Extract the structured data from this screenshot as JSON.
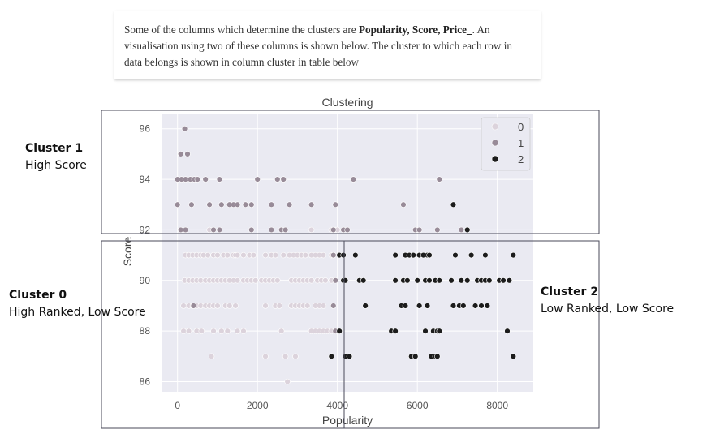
{
  "note": {
    "prefix": "Some of the columns which determine the clusters are ",
    "bold_columns": "Popularity, Score, Price_",
    "suffix": ". An visualisation using two of these columns is shown below. The cluster to which each row in data belongs is shown in column cluster in table below"
  },
  "annotations": {
    "cluster1": {
      "title": "Cluster 1",
      "desc": "High Score"
    },
    "cluster0": {
      "title": "Cluster 0",
      "desc": "High Ranked, Low Score"
    },
    "cluster2": {
      "title": "Cluster 2",
      "desc": "Low Ranked, Low Score"
    }
  },
  "colors": {
    "plot_background": "#eaeaf2",
    "grid": "#ffffff",
    "cluster0": "#dcd3dc",
    "cluster1": "#988b98",
    "cluster2": "#1c1c1c",
    "box_outline": "#4a4a5a"
  },
  "chart_data": {
    "type": "scatter",
    "title": "Clustering",
    "xlabel": "Popularity",
    "ylabel": "Score",
    "xlim": [
      -400,
      8900
    ],
    "ylim": [
      85.6,
      96.6
    ],
    "xticks": [
      0,
      2000,
      4000,
      6000,
      8000
    ],
    "yticks": [
      86,
      88,
      90,
      92,
      94,
      96
    ],
    "grid": true,
    "legend": {
      "position": "top-right",
      "labels": [
        "0",
        "1",
        "2"
      ]
    },
    "series": [
      {
        "name": "0",
        "points": [
          [
            200,
            91
          ],
          [
            280,
            91
          ],
          [
            380,
            91
          ],
          [
            480,
            91
          ],
          [
            580,
            91
          ],
          [
            650,
            91
          ],
          [
            760,
            91
          ],
          [
            900,
            91
          ],
          [
            1000,
            91
          ],
          [
            1150,
            91
          ],
          [
            1250,
            91
          ],
          [
            1400,
            91
          ],
          [
            1450,
            91
          ],
          [
            1500,
            91
          ],
          [
            1650,
            91
          ],
          [
            1800,
            91
          ],
          [
            1900,
            91
          ],
          [
            2200,
            91
          ],
          [
            2350,
            91
          ],
          [
            2450,
            91
          ],
          [
            2650,
            91
          ],
          [
            2800,
            91
          ],
          [
            2900,
            91
          ],
          [
            3000,
            91
          ],
          [
            3100,
            91
          ],
          [
            3200,
            91
          ],
          [
            3350,
            91
          ],
          [
            3450,
            91
          ],
          [
            3550,
            91
          ],
          [
            3650,
            91
          ],
          [
            3850,
            91
          ],
          [
            3900,
            91
          ],
          [
            180,
            90
          ],
          [
            280,
            90
          ],
          [
            380,
            90
          ],
          [
            480,
            90
          ],
          [
            580,
            90
          ],
          [
            700,
            90
          ],
          [
            800,
            90
          ],
          [
            900,
            90
          ],
          [
            1000,
            90
          ],
          [
            1100,
            90
          ],
          [
            1200,
            90
          ],
          [
            1300,
            90
          ],
          [
            1400,
            90
          ],
          [
            1500,
            90
          ],
          [
            1650,
            90
          ],
          [
            1750,
            90
          ],
          [
            1850,
            90
          ],
          [
            1950,
            90
          ],
          [
            2100,
            90
          ],
          [
            2200,
            90
          ],
          [
            2300,
            90
          ],
          [
            2400,
            90
          ],
          [
            2500,
            90
          ],
          [
            2850,
            90
          ],
          [
            2950,
            90
          ],
          [
            3050,
            90
          ],
          [
            3150,
            90
          ],
          [
            3250,
            90
          ],
          [
            3350,
            90
          ],
          [
            3500,
            90
          ],
          [
            3600,
            90
          ],
          [
            3700,
            90
          ],
          [
            3850,
            90
          ],
          [
            150,
            89
          ],
          [
            280,
            89
          ],
          [
            380,
            89
          ],
          [
            480,
            89
          ],
          [
            580,
            89
          ],
          [
            700,
            89
          ],
          [
            800,
            89
          ],
          [
            900,
            89
          ],
          [
            1000,
            89
          ],
          [
            1200,
            89
          ],
          [
            1300,
            89
          ],
          [
            1450,
            89
          ],
          [
            2200,
            89
          ],
          [
            2450,
            89
          ],
          [
            2550,
            89
          ],
          [
            2850,
            89
          ],
          [
            2950,
            89
          ],
          [
            3050,
            89
          ],
          [
            3150,
            89
          ],
          [
            3250,
            89
          ],
          [
            3450,
            89
          ],
          [
            3550,
            89
          ],
          [
            3650,
            89
          ],
          [
            150,
            88
          ],
          [
            280,
            88
          ],
          [
            480,
            88
          ],
          [
            600,
            88
          ],
          [
            900,
            88
          ],
          [
            1100,
            88
          ],
          [
            1250,
            88
          ],
          [
            1500,
            88
          ],
          [
            1650,
            88
          ],
          [
            2600,
            88
          ],
          [
            3350,
            88
          ],
          [
            3450,
            88
          ],
          [
            3550,
            88
          ],
          [
            3650,
            88
          ],
          [
            3750,
            88
          ],
          [
            3850,
            88
          ],
          [
            850,
            87
          ],
          [
            2200,
            87
          ],
          [
            2700,
            87
          ],
          [
            2950,
            87
          ],
          [
            2750,
            86
          ],
          [
            800,
            92
          ],
          [
            1850,
            92
          ],
          [
            3350,
            92
          ],
          [
            3850,
            92
          ],
          [
            3950,
            92
          ],
          [
            4000,
            92
          ]
        ]
      },
      {
        "name": "1",
        "points": [
          [
            180,
            96
          ],
          [
            80,
            95
          ],
          [
            250,
            95
          ],
          [
            0,
            94
          ],
          [
            100,
            94
          ],
          [
            200,
            94
          ],
          [
            320,
            94
          ],
          [
            420,
            94
          ],
          [
            500,
            94
          ],
          [
            700,
            94
          ],
          [
            1050,
            94
          ],
          [
            2000,
            94
          ],
          [
            2500,
            94
          ],
          [
            2650,
            94
          ],
          [
            4400,
            94
          ],
          [
            6550,
            94
          ],
          [
            0,
            93
          ],
          [
            350,
            93
          ],
          [
            800,
            93
          ],
          [
            1100,
            93
          ],
          [
            1300,
            93
          ],
          [
            1400,
            93
          ],
          [
            1500,
            93
          ],
          [
            1700,
            93
          ],
          [
            1850,
            93
          ],
          [
            2350,
            93
          ],
          [
            2800,
            93
          ],
          [
            3350,
            93
          ],
          [
            3950,
            93
          ],
          [
            5650,
            93
          ],
          [
            80,
            92
          ],
          [
            200,
            92
          ],
          [
            900,
            92
          ],
          [
            1050,
            92
          ],
          [
            1850,
            92
          ],
          [
            2350,
            92
          ],
          [
            2600,
            92
          ],
          [
            2700,
            92
          ],
          [
            3900,
            92
          ],
          [
            4150,
            92
          ],
          [
            4250,
            92
          ],
          [
            5950,
            92
          ],
          [
            6050,
            92
          ],
          [
            6500,
            92
          ],
          [
            7100,
            92
          ],
          [
            400,
            89
          ],
          [
            3900,
            91
          ],
          [
            3950,
            90
          ],
          [
            3900,
            89
          ],
          [
            3950,
            88
          ]
        ]
      },
      {
        "name": "2",
        "points": [
          [
            4050,
            91
          ],
          [
            4150,
            91
          ],
          [
            4450,
            91
          ],
          [
            5450,
            91
          ],
          [
            5700,
            91
          ],
          [
            5800,
            91
          ],
          [
            5900,
            91
          ],
          [
            6050,
            91
          ],
          [
            6150,
            91
          ],
          [
            6250,
            91
          ],
          [
            6300,
            91
          ],
          [
            6950,
            91
          ],
          [
            7350,
            91
          ],
          [
            7700,
            91
          ],
          [
            8400,
            91
          ],
          [
            4150,
            90
          ],
          [
            4200,
            90
          ],
          [
            4550,
            90
          ],
          [
            4650,
            90
          ],
          [
            5450,
            90
          ],
          [
            5650,
            90
          ],
          [
            5750,
            90
          ],
          [
            6000,
            90
          ],
          [
            6200,
            90
          ],
          [
            6300,
            90
          ],
          [
            6450,
            90
          ],
          [
            6550,
            90
          ],
          [
            6850,
            90
          ],
          [
            7100,
            90
          ],
          [
            7250,
            90
          ],
          [
            7500,
            90
          ],
          [
            7600,
            90
          ],
          [
            7700,
            90
          ],
          [
            7800,
            90
          ],
          [
            8050,
            90
          ],
          [
            8150,
            90
          ],
          [
            8300,
            90
          ],
          [
            4700,
            89
          ],
          [
            5600,
            89
          ],
          [
            5700,
            89
          ],
          [
            6050,
            89
          ],
          [
            6250,
            89
          ],
          [
            6900,
            89
          ],
          [
            7050,
            89
          ],
          [
            7150,
            89
          ],
          [
            7450,
            89
          ],
          [
            7600,
            89
          ],
          [
            7750,
            89
          ],
          [
            4050,
            88
          ],
          [
            5350,
            88
          ],
          [
            5450,
            88
          ],
          [
            6200,
            88
          ],
          [
            6400,
            88
          ],
          [
            6500,
            88
          ],
          [
            6550,
            88
          ],
          [
            8250,
            88
          ],
          [
            3850,
            87
          ],
          [
            4200,
            87
          ],
          [
            4300,
            87
          ],
          [
            5850,
            87
          ],
          [
            5950,
            87
          ],
          [
            6350,
            87
          ],
          [
            6450,
            87
          ],
          [
            6500,
            87
          ],
          [
            8400,
            87
          ],
          [
            6900,
            93
          ],
          [
            7250,
            92
          ]
        ]
      }
    ]
  }
}
